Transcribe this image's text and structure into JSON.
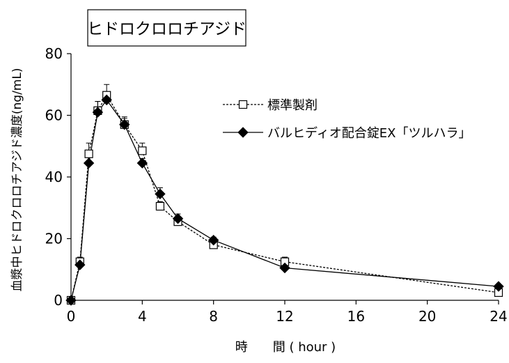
{
  "chart_data": {
    "type": "line",
    "title": "ヒドロクロロチアジド",
    "xlabel": "時　　間 ( hour )",
    "ylabel": "血漿中ヒドロクロロチアジド濃度(ng/mL)",
    "xlim": [
      0,
      24
    ],
    "ylim": [
      0,
      80
    ],
    "xticks": [
      0,
      4,
      8,
      12,
      16,
      20,
      24
    ],
    "yticks": [
      0,
      20,
      40,
      60,
      80
    ],
    "grid": false,
    "legend_position": "right",
    "x": [
      0,
      0.5,
      1,
      1.5,
      2,
      3,
      4,
      5,
      6,
      8,
      12,
      24
    ],
    "series": [
      {
        "name": "標準製剤",
        "marker": "open-square",
        "line_style": "dashed",
        "color": "#000000",
        "values": [
          0,
          12.5,
          47.5,
          61.5,
          66.5,
          57.0,
          48.5,
          30.5,
          25.5,
          18.0,
          12.5,
          2.5
        ],
        "sd": [
          0,
          1.5,
          3.5,
          3.0,
          3.5,
          2.5,
          2.5,
          1.5,
          1.5,
          1.0,
          1.5,
          0.5
        ]
      },
      {
        "name": "バルヒディオ配合錠EX「ツルハラ」",
        "marker": "filled-diamond",
        "line_style": "solid",
        "color": "#000000",
        "values": [
          0,
          11.5,
          44.5,
          61.0,
          65.0,
          57.0,
          44.5,
          34.5,
          26.5,
          19.5,
          10.5,
          4.5
        ],
        "sd": [
          0,
          1.0,
          3.0,
          3.5,
          2.5,
          2.0,
          1.5,
          2.0,
          1.5,
          1.0,
          1.0,
          0.5
        ]
      }
    ]
  }
}
